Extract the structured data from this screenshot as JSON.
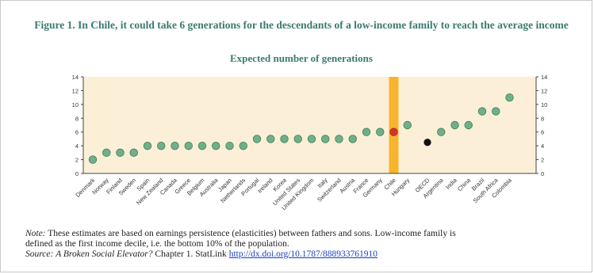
{
  "title": "Figure 1. In Chile, it could take 6 generations for the descendants of a low-income family to reach the average income",
  "subtitle": "Expected number of generations",
  "note": {
    "label": "Note:",
    "line1": " These estimates are based on earnings persistence (elasticities) between fathers and sons. Low-income family is",
    "line2": "defined as the first income decile, i.e. the bottom 10% of the population.",
    "source_label": "Source:",
    "source_title": "A Broken Social Elevator?",
    "source_rest": " Chapter 1. StatLink ",
    "link_text": "http://dx.doi.org/10.1787/888933761910"
  },
  "colors": {
    "background": "#fcefd7",
    "dot": "#6fb08a",
    "dot_edge": "#3f7d5c",
    "highlight_bar": "#f7b42c",
    "highlight_dot": "#d9342b",
    "oecd_dot": "#111111",
    "title": "#3a7a70"
  },
  "chart_data": {
    "type": "scatter",
    "title": "Expected number of generations",
    "ylim": [
      0,
      14
    ],
    "yticks": [
      0,
      2,
      4,
      6,
      8,
      10,
      12,
      14
    ],
    "grid": false,
    "highlight": "Chile",
    "categories": [
      "Denmark",
      "Norway",
      "Finland",
      "Sweden",
      "Spain",
      "New Zealand",
      "Canada",
      "Greece",
      "Belgium",
      "Australia",
      "Japan",
      "Netherlands",
      "Portugal",
      "Ireland",
      "Korea",
      "United States",
      "United Kingdom",
      "Italy",
      "Switzerland",
      "Austria",
      "France",
      "Germany",
      "Chile",
      "Hungary",
      "OECD",
      "Argentina",
      "India",
      "China",
      "Brazil",
      "South Africa",
      "Colombia"
    ],
    "values": [
      2,
      3,
      3,
      3,
      4,
      4,
      4,
      4,
      4,
      4,
      4,
      4,
      5,
      5,
      5,
      5,
      5,
      5,
      5,
      5,
      6,
      6,
      6,
      7,
      4.5,
      6,
      7,
      7,
      9,
      9,
      11
    ]
  }
}
